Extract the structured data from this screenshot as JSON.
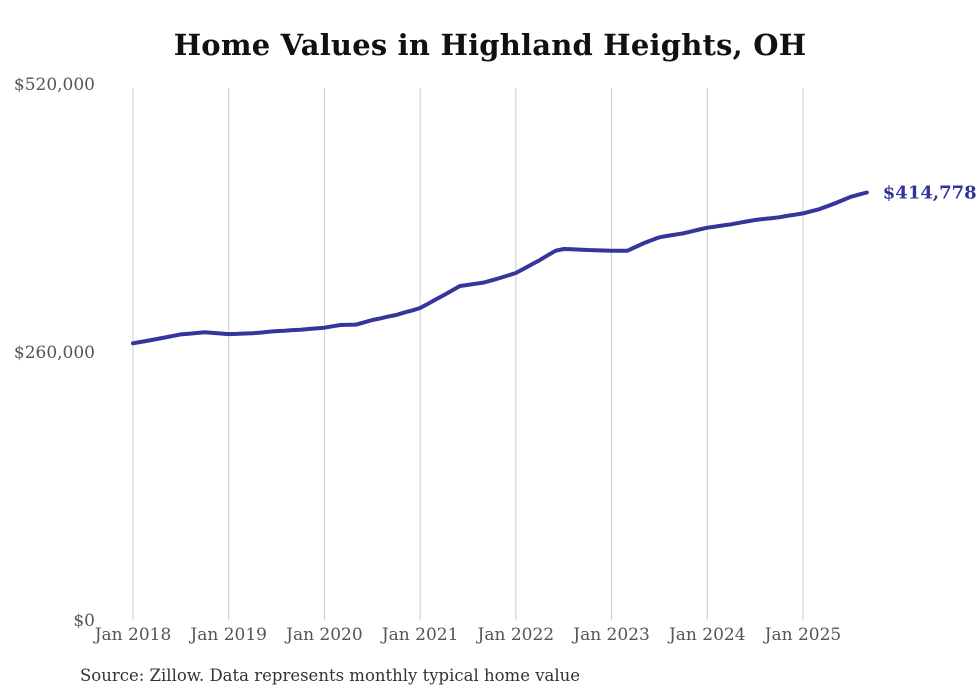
{
  "chart_data": {
    "type": "line",
    "title": "Home Values in Highland Heights, OH",
    "source_note": "Source: Zillow. Data represents monthly typical home value",
    "series_name": "Typical home value (monthly)",
    "x_start": "2018-01",
    "x_end": "2025-09",
    "x_interval": "monthly",
    "x_ticks": [
      "Jan 2018",
      "Jan 2019",
      "Jan 2020",
      "Jan 2021",
      "Jan 2022",
      "Jan 2023",
      "Jan 2024",
      "Jan 2025"
    ],
    "y_ticks": [
      {
        "label": "$520,000",
        "value": 520000
      },
      {
        "label": "$260,000",
        "value": 260000
      },
      {
        "label": "$0",
        "value": 0
      }
    ],
    "ylim": [
      0,
      520000
    ],
    "grid": "vertical-only",
    "legend": "none",
    "end_label": "$414,778",
    "end_value": 414778,
    "colors": {
      "line": "#35359b",
      "end_label": "#32329b",
      "grid": "#cbcbcb",
      "tick_label": "#555555",
      "title": "#111111",
      "source": "#333333"
    },
    "values": [
      268400,
      269800,
      271200,
      272600,
      274100,
      275600,
      277100,
      277800,
      278400,
      279100,
      278500,
      277900,
      277400,
      277600,
      277900,
      278100,
      278800,
      279600,
      280300,
      280700,
      281200,
      281600,
      282300,
      282900,
      283600,
      284900,
      286200,
      286400,
      286600,
      288800,
      291000,
      292600,
      294300,
      295900,
      298200,
      300400,
      302700,
      306900,
      311100,
      315300,
      319700,
      324000,
      325100,
      326300,
      327400,
      329600,
      331800,
      334200,
      336600,
      340800,
      345000,
      349200,
      353800,
      358300,
      359900,
      359600,
      359300,
      359000,
      358800,
      358500,
      358300,
      358300,
      358300,
      361900,
      365500,
      368400,
      371300,
      372600,
      373900,
      375200,
      377000,
      378800,
      380600,
      381700,
      382800,
      383900,
      385300,
      386700,
      388100,
      389000,
      389800,
      390700,
      392000,
      393200,
      394500,
      396500,
      398400,
      401300,
      404200,
      407400,
      410600,
      412700,
      414778
    ]
  }
}
